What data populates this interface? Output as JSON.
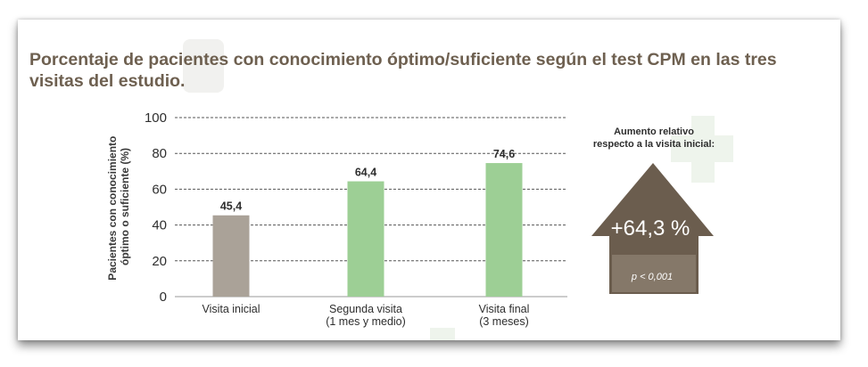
{
  "title": "Porcentaje de pacientes con conocimiento óptimo/suficiente según el test CPM en las tres visitas del estudio.",
  "chart_data": {
    "type": "bar",
    "categories": [
      [
        "Visita inicial"
      ],
      [
        "Segunda visita",
        "(1 mes y medio)"
      ],
      [
        "Visita final",
        "(3 meses)"
      ]
    ],
    "values": [
      45.4,
      64.4,
      74.6
    ],
    "value_labels": [
      "45,4",
      "64,4",
      "74,6"
    ],
    "bar_colors": [
      "#aaa298",
      "#9dcf95",
      "#9dcf95"
    ],
    "ylabel_lines": [
      "Pacientes con conocimiento",
      "óptimo o suficiente (%)"
    ],
    "ylim": [
      0,
      100
    ],
    "yticks": [
      0,
      20,
      40,
      60,
      80,
      100
    ],
    "grid": true,
    "grid_style": "dashed"
  },
  "callout": {
    "heading_lines": [
      "Aumento relativo",
      "respecto a la visita inicial:"
    ],
    "value": "+64,3 %",
    "pvalue": "p < 0,001",
    "house_color": "#6b5d4e"
  }
}
